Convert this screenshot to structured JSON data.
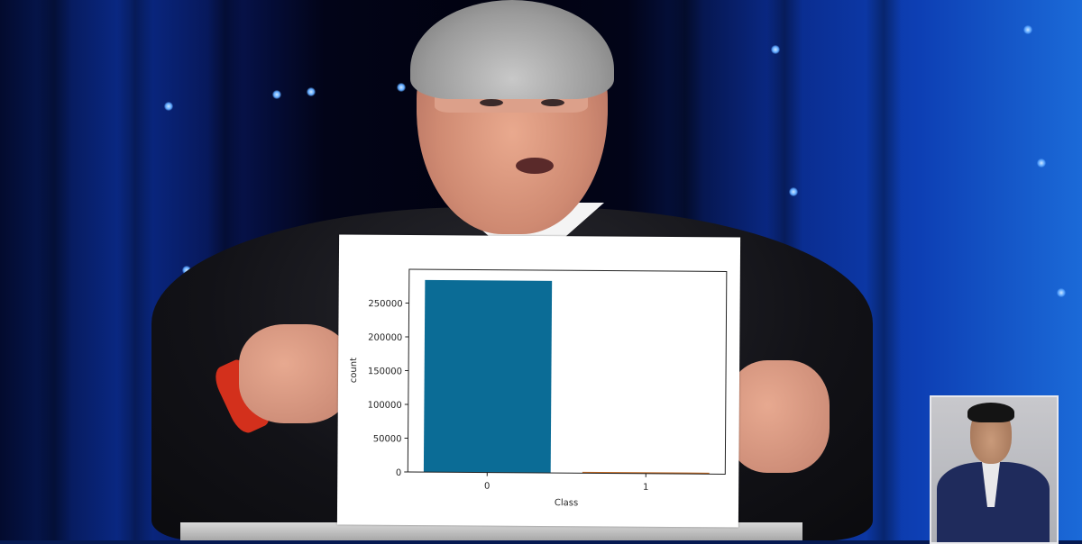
{
  "scene": {
    "description_role": "speaker holding printed chart at podium",
    "colors": {
      "bar_class0": "#0b6c96",
      "bar_class1": "#c46a22",
      "backdrop_blue": "#0d3fb4"
    }
  },
  "chart_data": {
    "type": "bar",
    "categories": [
      "0",
      "1"
    ],
    "values": [
      284315,
      492
    ],
    "xlabel": "Class",
    "ylabel": "count",
    "ylim": [
      0,
      300000
    ],
    "yticks": [
      "0",
      "50000",
      "100000",
      "150000",
      "200000",
      "250000"
    ],
    "ytick_values": [
      0,
      50000,
      100000,
      150000,
      200000,
      250000
    ],
    "series_colors": [
      "#0b6c96",
      "#c46a22"
    ],
    "grid": false,
    "legend": "none"
  }
}
